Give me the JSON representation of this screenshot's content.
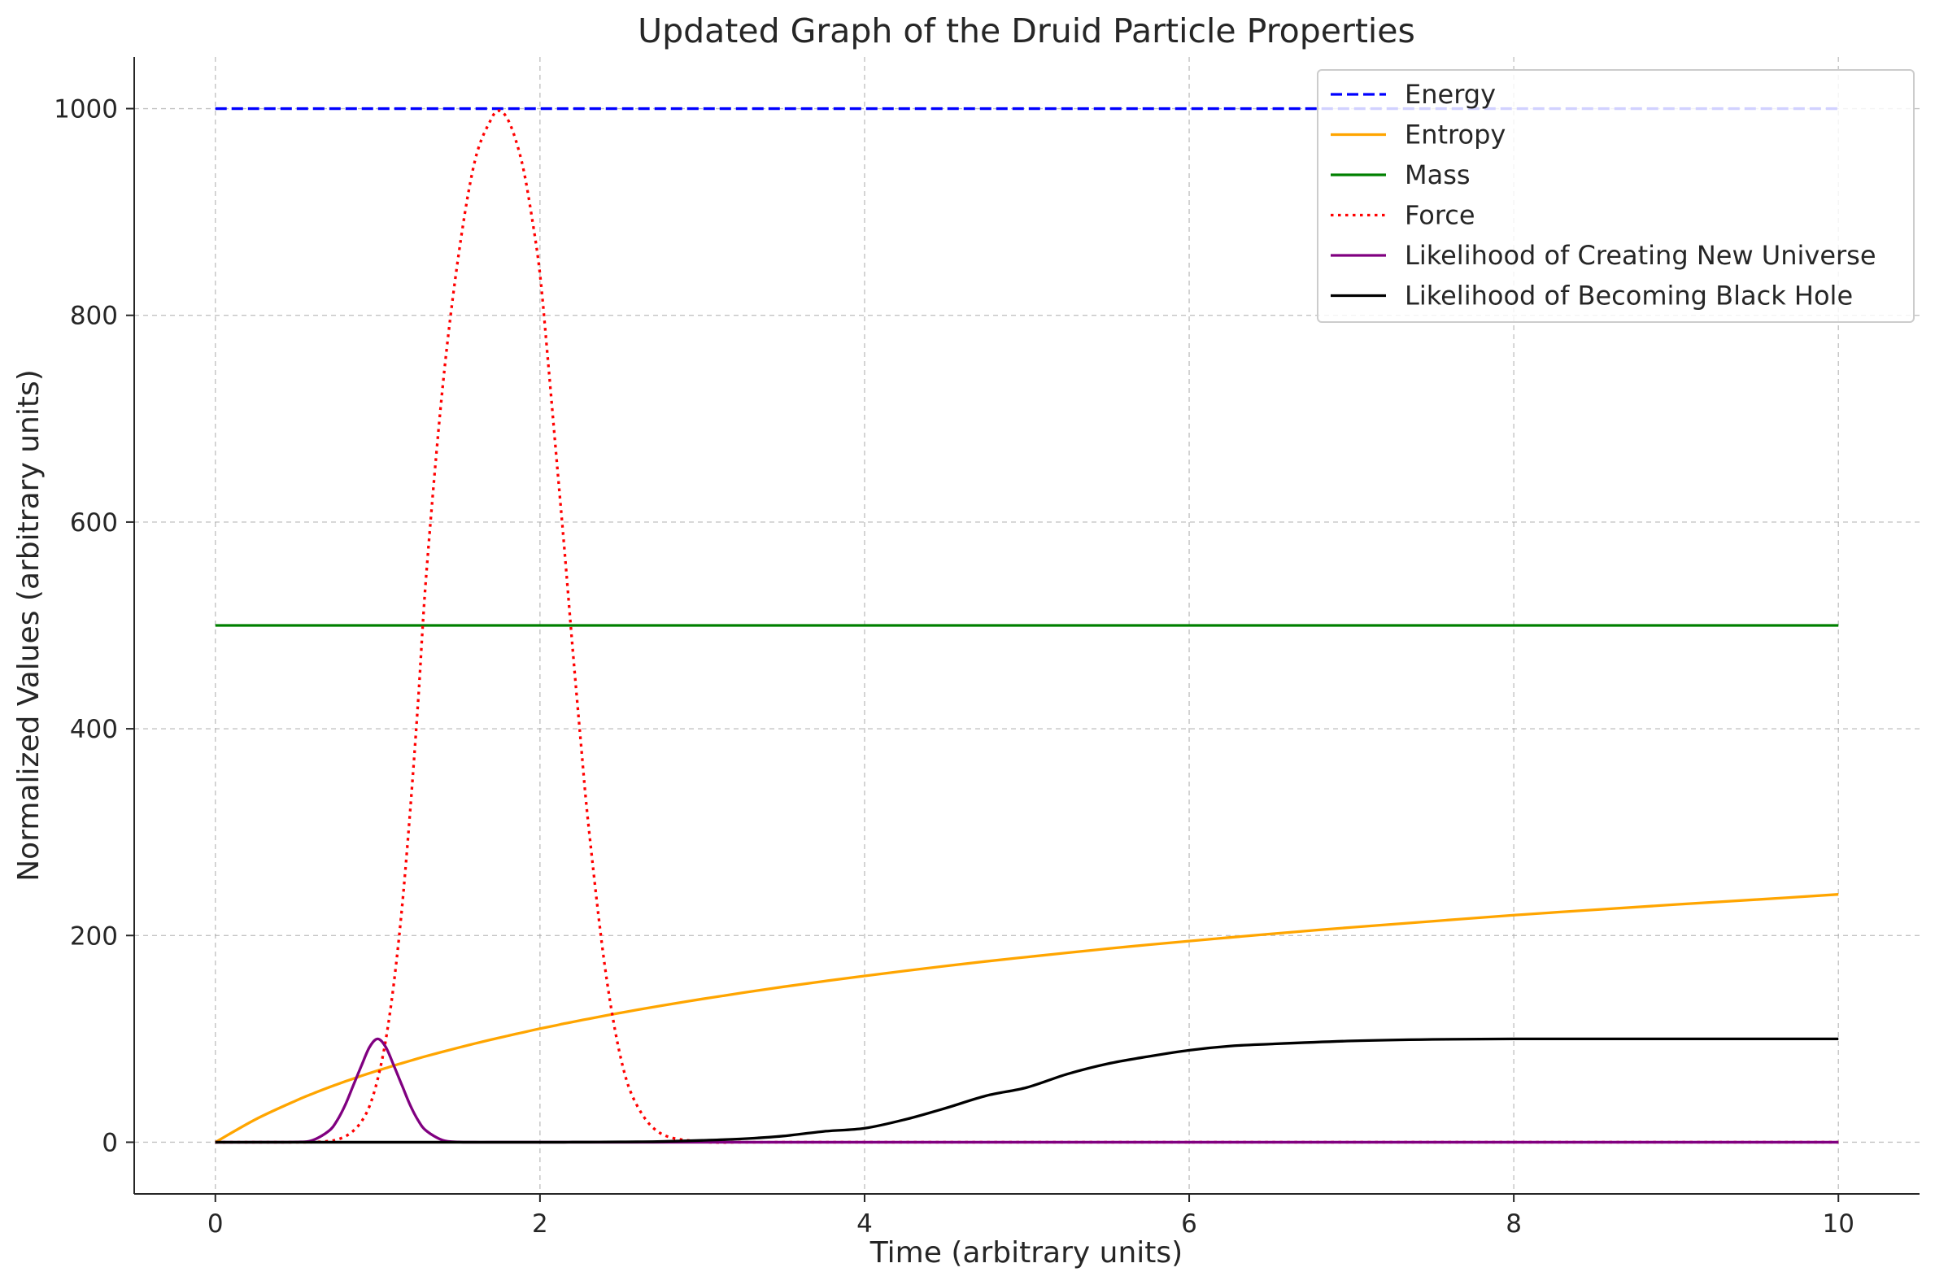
{
  "chart_data": {
    "type": "line",
    "title": "Updated Graph of the Druid Particle Properties",
    "xlabel": "Time (arbitrary units)",
    "ylabel": "Normalized Values (arbitrary units)",
    "xlim": [
      -0.5,
      10.5
    ],
    "ylim": [
      -50,
      1050
    ],
    "xticks": [
      0,
      2,
      4,
      6,
      8,
      10
    ],
    "yticks": [
      0,
      200,
      400,
      600,
      800,
      1000
    ],
    "grid": true,
    "legend_position": "top-right",
    "x": [
      0,
      0.25,
      0.5,
      0.6,
      0.7,
      0.75,
      0.8,
      0.85,
      0.9,
      0.95,
      1,
      1.05,
      1.1,
      1.15,
      1.2,
      1.25,
      1.3,
      1.4,
      1.5,
      1.6,
      1.7,
      1.75,
      1.8,
      1.85,
      1.9,
      1.95,
      2,
      2.05,
      2.1,
      2.15,
      2.2,
      2.25,
      2.3,
      2.4,
      2.5,
      2.6,
      2.75,
      3,
      3.25,
      3.5,
      3.75,
      4,
      4.25,
      4.5,
      4.75,
      5,
      5.25,
      5.5,
      5.75,
      6,
      6.25,
      6.5,
      7,
      7.5,
      8,
      8.5,
      9,
      9.5,
      10
    ],
    "series": [
      {
        "name": "Energy",
        "color": "#0000ff",
        "style": "dashed",
        "values": [
          1000,
          1000,
          1000,
          1000,
          1000,
          1000,
          1000,
          1000,
          1000,
          1000,
          1000,
          1000,
          1000,
          1000,
          1000,
          1000,
          1000,
          1000,
          1000,
          1000,
          1000,
          1000,
          1000,
          1000,
          1000,
          1000,
          1000,
          1000,
          1000,
          1000,
          1000,
          1000,
          1000,
          1000,
          1000,
          1000,
          1000,
          1000,
          1000,
          1000,
          1000,
          1000,
          1000,
          1000,
          1000,
          1000,
          1000,
          1000,
          1000,
          1000,
          1000,
          1000,
          1000,
          1000,
          1000,
          1000,
          1000,
          1000,
          1000
        ]
      },
      {
        "name": "Entropy",
        "color": "#ffa500",
        "style": "solid",
        "values": [
          0,
          22.3,
          40.5,
          47,
          53.1,
          56,
          58.8,
          61.5,
          64.2,
          66.8,
          69.3,
          71.7,
          74.2,
          76.5,
          78.8,
          81.1,
          83.3,
          87.5,
          91.6,
          95.5,
          99.3,
          101.1,
          102.9,
          104.7,
          106.4,
          108.2,
          109.9,
          111.5,
          113.1,
          114.8,
          116.3,
          117.9,
          119.4,
          122.4,
          125.3,
          128.1,
          132.2,
          138.6,
          144.6,
          150.4,
          155.8,
          160.9,
          165.8,
          170.5,
          175.0,
          179.2,
          183.3,
          187.3,
          191.1,
          194.6,
          198.1,
          201.5,
          207.9,
          213.8,
          219.7,
          224.9,
          230.0,
          234.8,
          239.8
        ]
      },
      {
        "name": "Mass",
        "color": "#008000",
        "style": "solid",
        "values": [
          500,
          500,
          500,
          500,
          500,
          500,
          500,
          500,
          500,
          500,
          500,
          500,
          500,
          500,
          500,
          500,
          500,
          500,
          500,
          500,
          500,
          500,
          500,
          500,
          500,
          500,
          500,
          500,
          500,
          500,
          500,
          500,
          500,
          500,
          500,
          500,
          500,
          500,
          500,
          500,
          500,
          500,
          500,
          500,
          500,
          500,
          500,
          500,
          500,
          500,
          500,
          500,
          500,
          500,
          500,
          500,
          500,
          500,
          500
        ]
      },
      {
        "name": "Force",
        "color": "#ff0000",
        "style": "dotted",
        "values": [
          0,
          0,
          0,
          0.1,
          1.1,
          2.6,
          5.6,
          11,
          20,
          35,
          61,
          99,
          154,
          227,
          320,
          428,
          550,
          730,
          860,
          950,
          990,
          998,
          990,
          970,
          940,
          895,
          840,
          755,
          665,
          575,
          480,
          390,
          305,
          170,
          80,
          35,
          8,
          0.5,
          0,
          0,
          0,
          0,
          0,
          0,
          0,
          0,
          0,
          0,
          0,
          0,
          0,
          0,
          0,
          0,
          0,
          0,
          0,
          0,
          0
        ]
      },
      {
        "name": "Likelihood of Creating New Universe",
        "color": "#800080",
        "style": "solid",
        "values": [
          0,
          0,
          0.2,
          2,
          11,
          21,
          36,
          55,
          74,
          92,
          100,
          92,
          74,
          55,
          36,
          21,
          11,
          2,
          0.2,
          0,
          0,
          0,
          0,
          0,
          0,
          0,
          0,
          0,
          0,
          0,
          0,
          0,
          0,
          0,
          0,
          0,
          0,
          0,
          0,
          0,
          0,
          0,
          0,
          0,
          0,
          0,
          0,
          0,
          0,
          0,
          0,
          0,
          0,
          0,
          0,
          0,
          0,
          0,
          0
        ]
      },
      {
        "name": "Likelihood of Becoming Black Hole",
        "color": "#000000",
        "style": "solid",
        "values": [
          0,
          0,
          0,
          0,
          0,
          0,
          0,
          0,
          0,
          0,
          0,
          0,
          0,
          0,
          0,
          0,
          0,
          0,
          0,
          0,
          0,
          0,
          0,
          0,
          0,
          0,
          0,
          0,
          0,
          0,
          0.1,
          0.1,
          0.1,
          0.2,
          0.3,
          0.4,
          0.7,
          1.8,
          3.3,
          6.0,
          10.5,
          13.5,
          22,
          33,
          45,
          53,
          66,
          76,
          83,
          89,
          93,
          95,
          98,
          99.5,
          100,
          100,
          100,
          100,
          100
        ]
      }
    ]
  }
}
